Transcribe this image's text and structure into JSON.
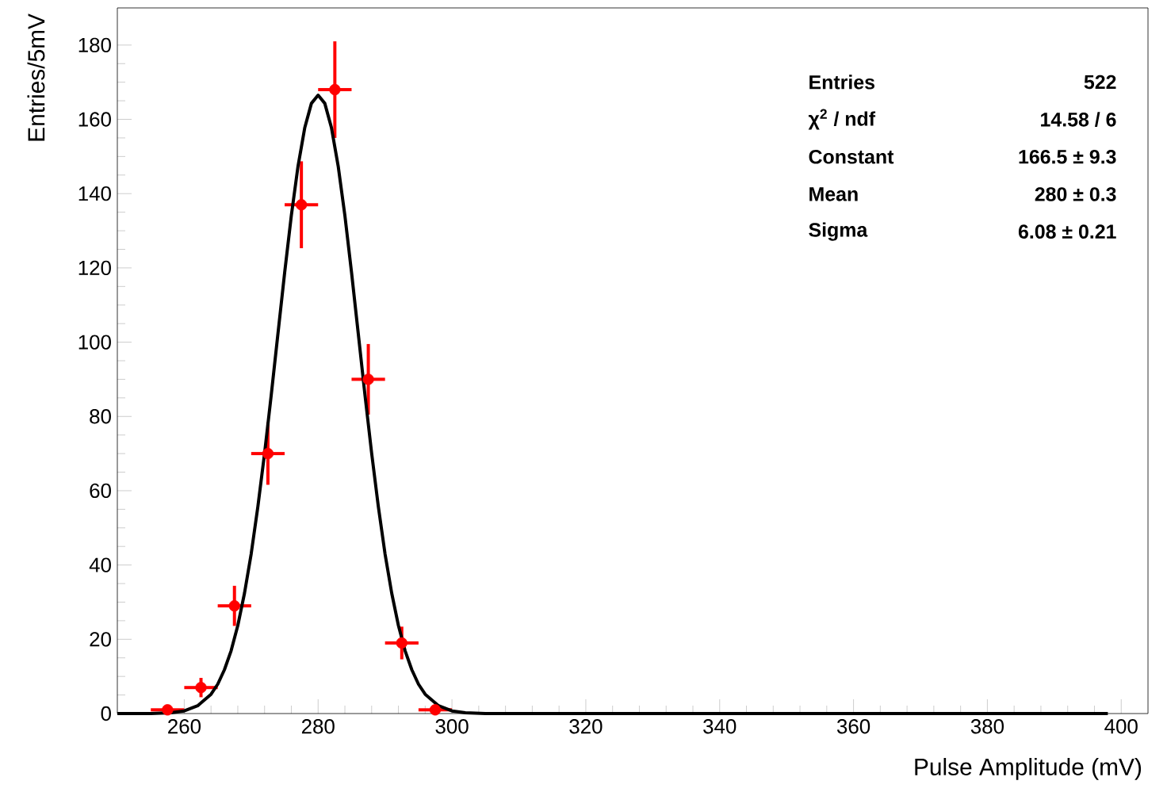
{
  "chart_data": {
    "type": "scatter",
    "xlabel": "Pulse Amplitude (mV)",
    "ylabel": "Entries/5mV",
    "xlim": [
      250,
      404
    ],
    "ylim": [
      0,
      190
    ],
    "xticks": [
      260,
      280,
      300,
      320,
      340,
      360,
      380,
      400
    ],
    "yticks": [
      0,
      20,
      40,
      60,
      80,
      100,
      120,
      140,
      160,
      180
    ],
    "grid": false,
    "marker": "circle",
    "annotations": [
      "Entries",
      "522",
      "χ$^{2}$ / ndf",
      "14.58 / 6",
      "Constant",
      "166.5 ± 9.3",
      "Mean",
      "280 ± 0.3",
      "Sigma",
      "6.08 ± 0.21"
    ],
    "series": [
      {
        "color": "#ff0000",
        "x": [
          257.5,
          262.5,
          267.5,
          272.5,
          277.5,
          282.5,
          287.5,
          292.5,
          297.5
        ],
        "values": [
          1,
          7,
          29,
          70,
          137,
          168,
          90,
          19,
          1
        ],
        "errors": [
          1,
          2.6,
          5.4,
          8.4,
          11.7,
          13,
          9.5,
          4.4,
          1
        ],
        "xerrors": [
          2.5,
          2.5,
          2.5,
          2.5,
          2.5,
          2.5,
          2.5,
          2.5,
          2.5
        ]
      },
      {
        "type": "line",
        "marker": "none",
        "color": "#000000",
        "x": [
          250,
          255,
          258,
          260,
          262,
          264,
          265,
          266,
          267,
          268,
          269,
          270,
          271,
          272,
          273,
          274,
          275,
          276,
          277,
          278,
          279,
          280,
          281,
          282,
          283,
          284,
          285,
          286,
          287,
          288,
          289,
          290,
          291,
          292,
          293,
          294,
          295,
          296,
          298,
          300,
          302,
          305,
          320,
          350,
          398
        ],
        "values": [
          0,
          0,
          0.2,
          0.7,
          2.1,
          5.2,
          7.9,
          11.8,
          16.9,
          23.7,
          32.4,
          43,
          55.7,
          70.1,
          85.8,
          102.3,
          118.7,
          134.1,
          147.4,
          157.7,
          164.3,
          166.5,
          164.3,
          157.7,
          147.4,
          134.1,
          118.7,
          102.3,
          85.8,
          70.1,
          55.7,
          43,
          32.4,
          23.7,
          16.9,
          11.8,
          7.9,
          5.2,
          2.1,
          0.7,
          0.2,
          0,
          0,
          0,
          0
        ]
      }
    ]
  }
}
